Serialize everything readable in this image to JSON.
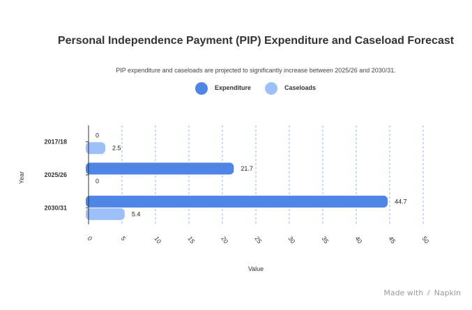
{
  "chart_data": {
    "type": "bar",
    "orientation": "horizontal",
    "title": "Personal Independence Payment (PIP) Expenditure and Caseload Forecast",
    "subtitle": "PIP expenditure and caseloads are projected to significantly increase between 2025/26 and 2030/31.",
    "xlabel": "Value",
    "ylabel": "Year",
    "categories": [
      "2017/18",
      "2025/26",
      "2030/31"
    ],
    "series": [
      {
        "name": "Expenditure",
        "values": [
          0,
          21.7,
          44.7
        ],
        "color": "#4f86e6"
      },
      {
        "name": "Caseloads",
        "values": [
          2.5,
          0,
          5.4
        ],
        "color": "#9dc0f9"
      }
    ],
    "xlim": [
      0,
      50
    ],
    "xticks": [
      0,
      5,
      10,
      15,
      20,
      25,
      30,
      35,
      40,
      45,
      50
    ],
    "grid": "vertical-dashed",
    "legend_position": "top"
  },
  "footer": {
    "made_with": "Made with",
    "brand_icon": "napkin-icon",
    "brand": "Napkin"
  }
}
